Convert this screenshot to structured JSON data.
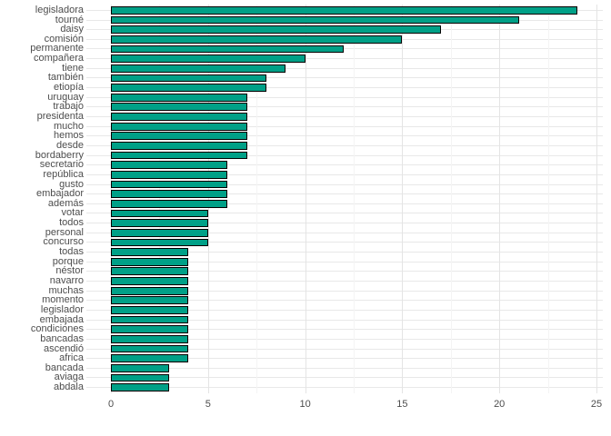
{
  "chart_data": {
    "type": "bar",
    "orientation": "horizontal",
    "title": "",
    "xlabel": "",
    "ylabel": "",
    "legend_position": "none",
    "grid": "on",
    "xlim": [
      0,
      25
    ],
    "x_ticks": [
      "0",
      "5",
      "10",
      "15",
      "20",
      "25"
    ],
    "x_tick_values": [
      0,
      5,
      10,
      15,
      20,
      25
    ],
    "x_minor_tick_values": [
      2.5,
      7.5,
      12.5,
      17.5,
      22.5
    ],
    "categories": [
      "legisladora",
      "tourné",
      "daisy",
      "comisión",
      "permanente",
      "compañera",
      "tiene",
      "también",
      "etiopía",
      "uruguay",
      "trabajo",
      "presidenta",
      "mucho",
      "hemos",
      "desde",
      "bordaberry",
      "secretario",
      "república",
      "gusto",
      "embajador",
      "además",
      "votar",
      "todos",
      "personal",
      "concurso",
      "todas",
      "porque",
      "néstor",
      "navarro",
      "muchas",
      "momento",
      "legislador",
      "embajada",
      "condiciones",
      "bancadas",
      "ascendió",
      "africa",
      "bancada",
      "aviaga",
      "abdala"
    ],
    "values": [
      24,
      21,
      17,
      15,
      12,
      10,
      9,
      8,
      8,
      7,
      7,
      7,
      7,
      7,
      7,
      7,
      6,
      6,
      6,
      6,
      6,
      5,
      5,
      5,
      5,
      4,
      4,
      4,
      4,
      4,
      4,
      4,
      4,
      4,
      4,
      4,
      4,
      3,
      3,
      3
    ],
    "bar_fill": "#00A087",
    "bar_border": "#000000"
  },
  "colors": {
    "background": "#FFFFFF",
    "grid_major": "#E4E4E4",
    "grid_minor": "#F4F4F4",
    "axis_text": "#4D4D4D"
  }
}
